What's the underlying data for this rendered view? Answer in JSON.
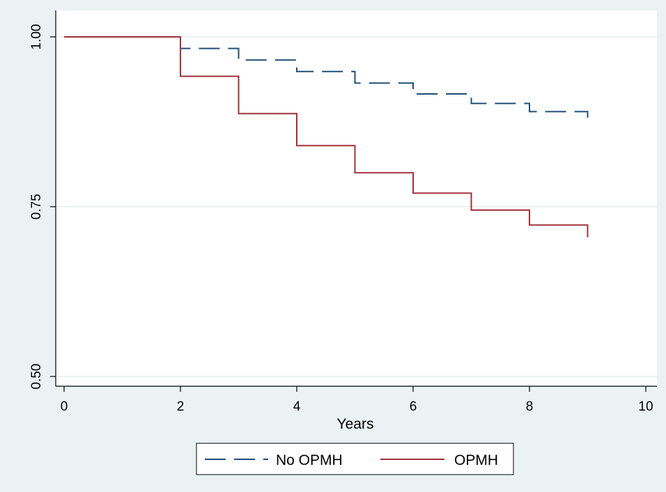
{
  "chart_data": {
    "type": "line",
    "title": "",
    "xlabel": "Years",
    "ylabel": "",
    "xlim": [
      0,
      10
    ],
    "ylim": [
      0.5,
      1.0
    ],
    "x_ticks": [
      "0",
      "2",
      "4",
      "6",
      "8",
      "10"
    ],
    "y_ticks": [
      "0.50",
      "0.75",
      "1.00"
    ],
    "grid": "horizontal",
    "legend": "bottom",
    "step": true,
    "series": [
      {
        "name": "No OPMH",
        "color": "#1f4e79",
        "dash": "dashed",
        "points": [
          [
            0,
            1.0
          ],
          [
            2,
            1.0
          ],
          [
            2,
            0.983
          ],
          [
            3,
            0.983
          ],
          [
            3,
            0.966
          ],
          [
            4,
            0.966
          ],
          [
            4,
            0.949
          ],
          [
            5,
            0.949
          ],
          [
            5,
            0.932
          ],
          [
            6,
            0.932
          ],
          [
            6,
            0.916
          ],
          [
            7,
            0.916
          ],
          [
            7,
            0.902
          ],
          [
            8,
            0.902
          ],
          [
            8,
            0.89
          ],
          [
            9,
            0.89
          ],
          [
            9,
            0.881
          ]
        ]
      },
      {
        "name": "OPMH",
        "color": "#a0303a",
        "dash": "solid",
        "points": [
          [
            0,
            1.0
          ],
          [
            2,
            1.0
          ],
          [
            2,
            0.942
          ],
          [
            3,
            0.942
          ],
          [
            3,
            0.887
          ],
          [
            4,
            0.887
          ],
          [
            4,
            0.84
          ],
          [
            5,
            0.84
          ],
          [
            5,
            0.8
          ],
          [
            6,
            0.8
          ],
          [
            6,
            0.77
          ],
          [
            7,
            0.77
          ],
          [
            7,
            0.745
          ],
          [
            8,
            0.745
          ],
          [
            8,
            0.723
          ],
          [
            9,
            0.723
          ],
          [
            9,
            0.705
          ]
        ]
      }
    ]
  }
}
